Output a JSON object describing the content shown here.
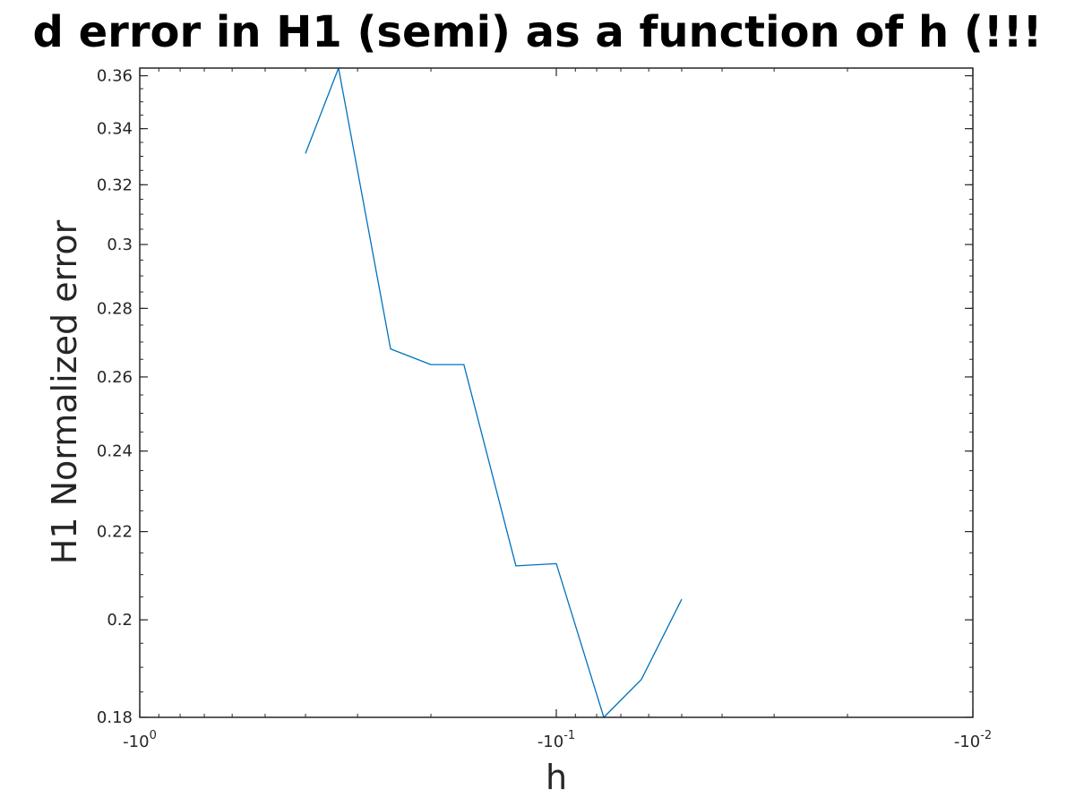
{
  "chart_data": {
    "type": "line",
    "title": "d error in H1 (semi) as a function of h (!!!",
    "xlabel": "h",
    "ylabel": "H1 Normalized error",
    "x_scale": "log",
    "y_scale": "log",
    "xlim": [
      -1,
      -0.01
    ],
    "ylim": [
      0.18,
      0.363
    ],
    "grid": false,
    "legend": "none",
    "x_ticks": [
      {
        "value": -1,
        "base": "-10",
        "exp": "0"
      },
      {
        "value": -0.1,
        "base": "-10",
        "exp": "-1"
      },
      {
        "value": -0.01,
        "base": "-10",
        "exp": "-2"
      }
    ],
    "y_ticks": [
      {
        "value": 0.18,
        "label": "0.18"
      },
      {
        "value": 0.2,
        "label": "0.2"
      },
      {
        "value": 0.22,
        "label": "0.22"
      },
      {
        "value": 0.24,
        "label": "0.24"
      },
      {
        "value": 0.26,
        "label": "0.26"
      },
      {
        "value": 0.28,
        "label": "0.28"
      },
      {
        "value": 0.3,
        "label": "0.3"
      },
      {
        "value": 0.32,
        "label": "0.32"
      },
      {
        "value": 0.34,
        "label": "0.34"
      },
      {
        "value": 0.36,
        "label": "0.36"
      }
    ],
    "series": [
      {
        "color": "#0072BD",
        "x": [
          -0.4,
          -0.3333,
          -0.25,
          -0.2,
          -0.1667,
          -0.125,
          -0.1,
          -0.0769,
          -0.0625,
          -0.05
        ],
        "y": [
          0.331,
          0.363,
          0.268,
          0.2635,
          0.2635,
          0.212,
          0.2125,
          0.18,
          0.1875,
          0.2045
        ]
      }
    ]
  }
}
